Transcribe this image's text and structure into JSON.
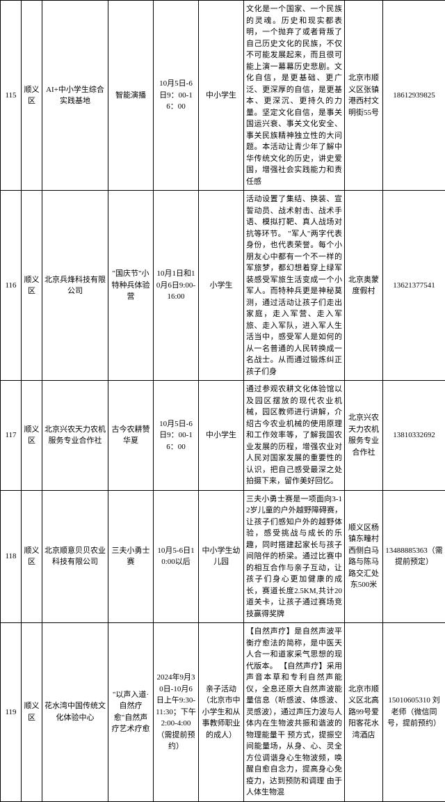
{
  "rows": [
    {
      "id": "115",
      "district": "顺义区",
      "organizer": "AI+中小学生综合实践基地",
      "activity": "智能演播",
      "time": "10月5日-6日9：00-16：00",
      "audience": "中小学生",
      "description": "文化是一个国家、一个民族的灵魂。历史和现实都表明，一个抛弃了或者背叛了自己历史文化的民族，不仅不可能发展起来，而且很可能上演一幕幕历史悲剧。文化自信，是更基础、更广泛、更深厚的自信，是更基本、更深沉、更持久的力量。坚定文化自信，是事关国运兴衰、事关文化安全、事关民族精神独立性的大问题。本活动让青少年了解中华传统文化的历史，讲史爱国，增强社会实践能力和责任感",
      "address": "北京市顺义区张镇港西村文明街55号",
      "phone": "18612939825"
    },
    {
      "id": "116",
      "district": "顺义区",
      "organizer": "北京兵烽科技有限公司",
      "activity": "\"国庆节\"小特种兵体验营",
      "time": "10月1日和10月6日9:00-16:00",
      "audience": "小学生",
      "description": "活动设置了集结、换装、宣誓动员、战术射击、战术手语、模拟打靶、真人战场对抗等环节。\n\"军人\"两字代表身份，也代表荣誉。每个小朋友心中都有一个不一样的军旅梦，都幻想着穿上绿军装感受军旅生活变成一个小军人。而特种兵更是神秘莫测，通过活动让孩子们走出家庭，走入军营、走入军旅、走入军队，进入军人生活当中，感受军人是如何的从一名普通的人民转换成一名战士。从而通过锻炼纠正孩子们身",
      "address": "北京奥蒙度假村",
      "phone": "13621377541"
    },
    {
      "id": "117",
      "district": "顺义区",
      "organizer": "北京兴农天力农机服务专业合作社",
      "activity": "古今农耕赞华夏",
      "time": "10月5日-6日9：00-16：00",
      "audience": "中小学生",
      "description": "通过参观农耕文化体验馆以及园区摆放的现代农业机械，园区教师进行讲解，介绍古今农业机械的使用原理和工作效率等，了解我国农业发展的历程，增强农业对人民对国家发展的重要性的认识，把自己感受最深之处拍摄下来，留作美好回忆。",
      "address": "北京兴农天力农机服务专业合作社",
      "phone": "13810332692"
    },
    {
      "id": "118",
      "district": "顺义区",
      "organizer": "北京顺意贝贝农业科技有限公司",
      "activity": "三夫小勇士赛",
      "time": "10月5-6日10:00以后",
      "audience": "中小学生幼儿园",
      "description": "三夫小勇士赛是一项面向3-12岁儿童的户外越野障碍赛，让孩子们感知户外的越野体验，感受挑战与成长的乐趣，同时搭建起家长与孩子间陪伴的桥梁。通过比赛中的相互合作与亲子互动，让孩子们身心更加健康的成长，赛道长度2.5KM,共计20道关卡，让孩子通过赛场竞技赢得奖牌",
      "address": "顺义区杨镇东疃村西侧白马路与陈马路交汇处东500米",
      "phone": "13488885363（需提前预定）"
    },
    {
      "id": "119",
      "district": "顺义区",
      "organizer": "花水湾中国传统文化体验中心",
      "activity": "\"以声入道·自然疗愈\"自然声疗艺术疗愈",
      "time": "2024年9月30日-10月6日上午9:30-11:30；下午2:00-4:00（需提前预约）",
      "audience": "亲子活动（北京市中小学生和从事教师职业的成人）",
      "description": "【自然声疗】是自然声波平衡疗愈法的简称，是中医天人合一和道家采气思想的现代版本。\n【自然声疗】采用声音本草和专利自然声能仪，全息还原大自然声波能量信息（听感波、体感波、灵感波），通过声压力波与人体内在生物波共振和谐波的物理能量干 预方式，提振空间能量场，从身、心、灵全方位调谐身心生物波频，唤醒自愈自念力，提高身心免疫力，达到预防和调理 由于人体生物混",
      "address": "北京市顺义区北高路99号爱阳客花水湾酒店",
      "phone": "15010605310 刘老师（微信同号，提前预约）"
    }
  ]
}
